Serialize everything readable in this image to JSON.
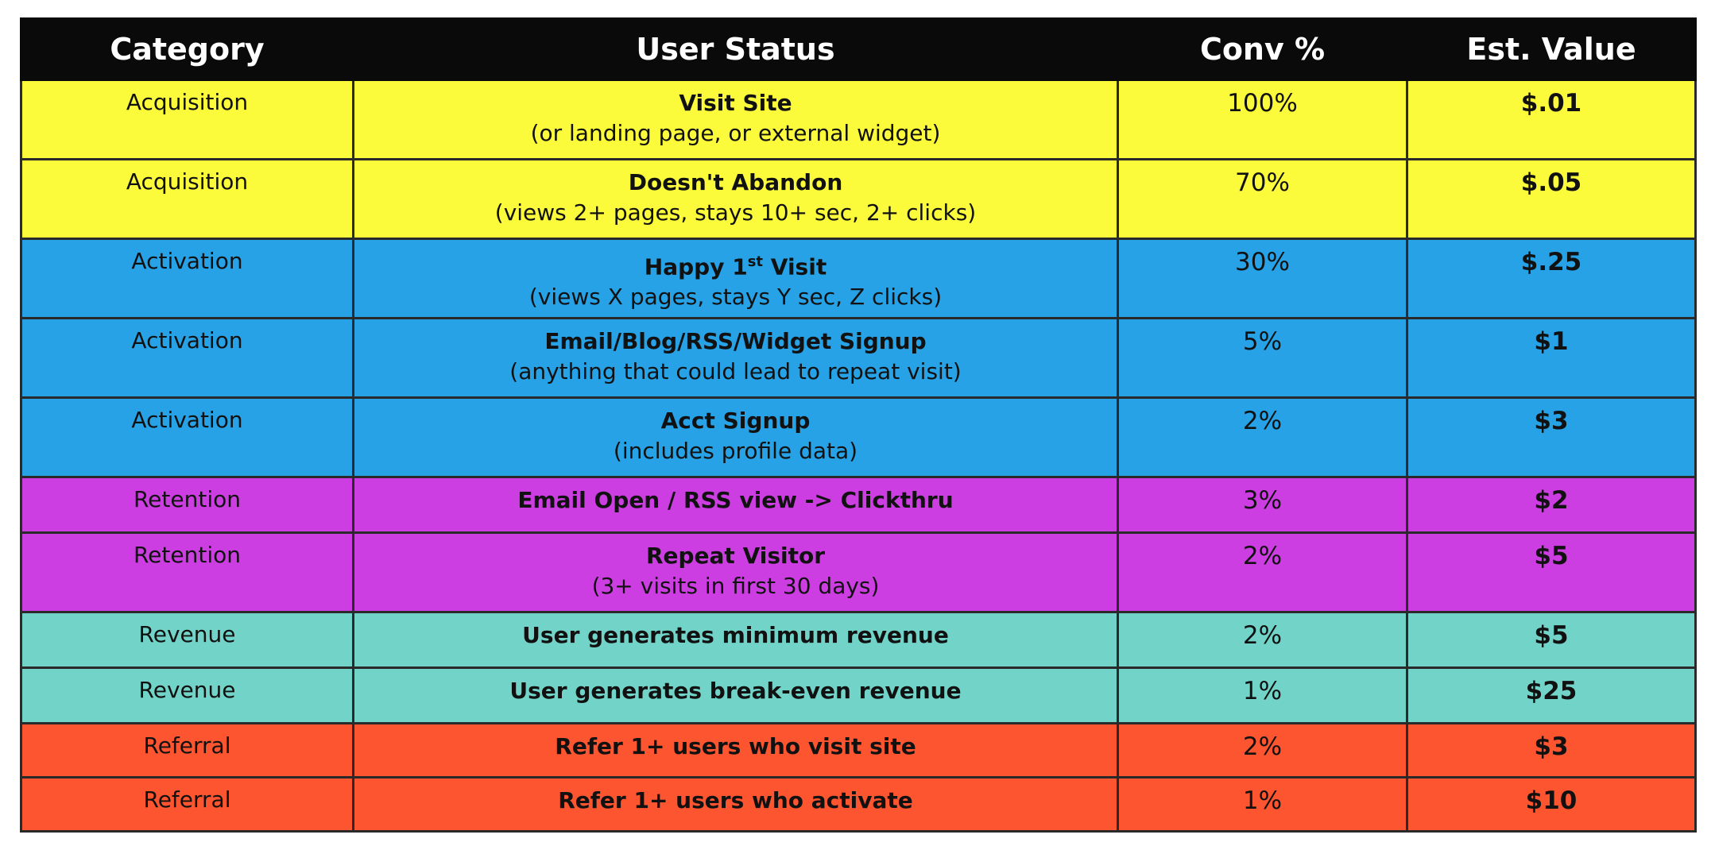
{
  "headers": {
    "category": "Category",
    "user_status": "User Status",
    "conv": "Conv %",
    "value": "Est. Value"
  },
  "colors": {
    "acquisition": "#fbfb3c",
    "activation": "#27a2e6",
    "retention": "#cd3ee2",
    "revenue": "#72d4c8",
    "referral": "#fc5530",
    "header": "#0a0a0a"
  },
  "rows": [
    {
      "category": "Acquisition",
      "status": "Visit Site",
      "detail": "(or landing page, or external widget)",
      "conv": "100%",
      "value": "$.01"
    },
    {
      "category": "Acquisition",
      "status": "Doesn't Abandon",
      "detail": "(views 2+ pages, stays 10+ sec, 2+ clicks)",
      "conv": "70%",
      "value": "$.05"
    },
    {
      "category": "Activation",
      "status": "Happy 1",
      "status_sup": "st",
      "status_after": " Visit",
      "detail": "(views X pages, stays Y sec, Z clicks)",
      "conv": "30%",
      "value": "$.25"
    },
    {
      "category": "Activation",
      "status": "Email/Blog/RSS/Widget Signup",
      "detail": "(anything that could lead to repeat visit)",
      "conv": "5%",
      "value": "$1"
    },
    {
      "category": "Activation",
      "status": "Acct Signup",
      "detail": "(includes profile data)",
      "conv": "2%",
      "value": "$3"
    },
    {
      "category": "Retention",
      "status": "Email Open / RSS view -> Clickthru",
      "conv": "3%",
      "value": "$2"
    },
    {
      "category": "Retention",
      "status": "Repeat Visitor",
      "detail": "(3+ visits in first 30 days)",
      "conv": "2%",
      "value": "$5"
    },
    {
      "category": "Revenue",
      "status": "User generates minimum revenue",
      "conv": "2%",
      "value": "$5"
    },
    {
      "category": "Revenue",
      "status": "User generates break-even revenue",
      "conv": "1%",
      "value": "$25"
    },
    {
      "category": "Referral",
      "status": "Refer 1+ users who visit site",
      "conv": "2%",
      "value": "$3"
    },
    {
      "category": "Referral",
      "status": "Refer 1+ users who activate",
      "conv": "1%",
      "value": "$10"
    }
  ]
}
